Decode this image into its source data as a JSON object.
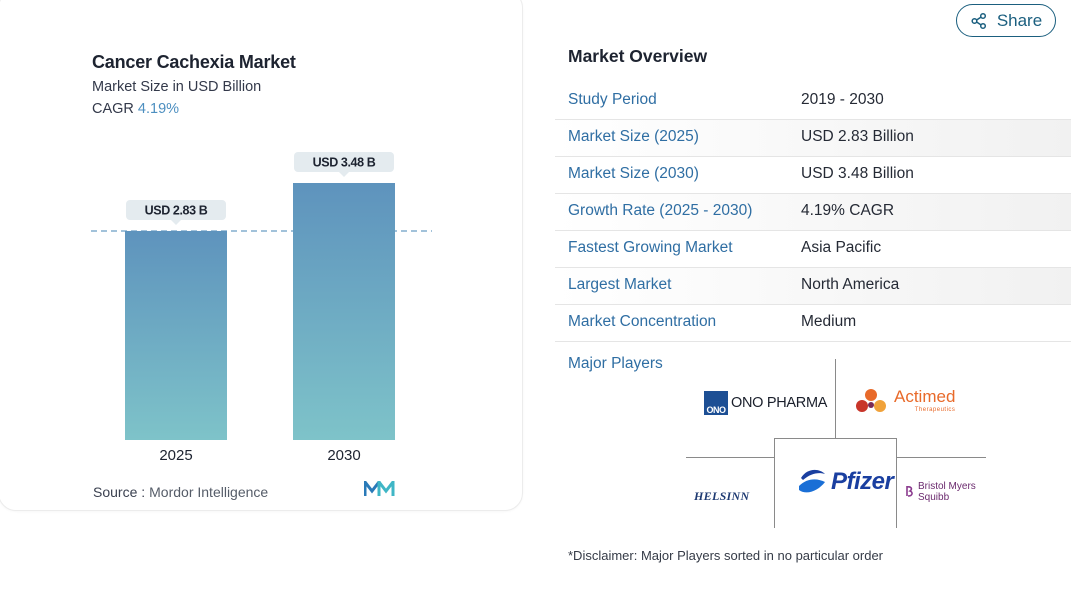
{
  "chart_data": {
    "type": "bar",
    "title": "Cancer Cachexia Market",
    "subtitle": "Market Size in USD Billion",
    "cagr_label": "CAGR",
    "cagr_value": "4.19%",
    "categories": [
      "2025",
      "2030"
    ],
    "values": [
      2.83,
      3.48
    ],
    "value_labels": [
      "USD 2.83 B",
      "USD 3.48 B"
    ],
    "ylim": [
      0,
      3.48
    ],
    "grid": false,
    "reference_line": 2.83,
    "colors": {
      "bar_top": "#5e93bd",
      "bar_bottom": "#7ec3c9",
      "label_bg": "#e4ebef",
      "dash": "#6b9ec4"
    }
  },
  "source": {
    "label": "Source :",
    "value": "Mordor Intelligence"
  },
  "share": {
    "label": "Share"
  },
  "overview": {
    "title": "Market Overview",
    "rows": [
      {
        "key": "Study Period",
        "value": "2019 - 2030"
      },
      {
        "key": "Market Size (2025)",
        "value": "USD 2.83 Billion"
      },
      {
        "key": "Market Size (2030)",
        "value": "USD 3.48 Billion"
      },
      {
        "key": "Growth Rate (2025 - 2030)",
        "value": "4.19% CAGR"
      },
      {
        "key": "Fastest Growing Market",
        "value": "Asia Pacific"
      },
      {
        "key": "Largest Market",
        "value": "North America"
      },
      {
        "key": "Market Concentration",
        "value": "Medium"
      }
    ]
  },
  "players": {
    "title": "Major Players",
    "ono": {
      "box": "ONO",
      "text": "ONO PHARMA"
    },
    "actimed": {
      "text": "Actimed",
      "sub": "Therapeutics"
    },
    "helsinn": {
      "text": "HELSINN"
    },
    "pfizer": {
      "text": "Pfizer"
    },
    "bms": {
      "line1": "Bristol Myers",
      "line2": "Squibb"
    }
  },
  "disclaimer": "*Disclaimer: Major Players sorted in no particular order"
}
